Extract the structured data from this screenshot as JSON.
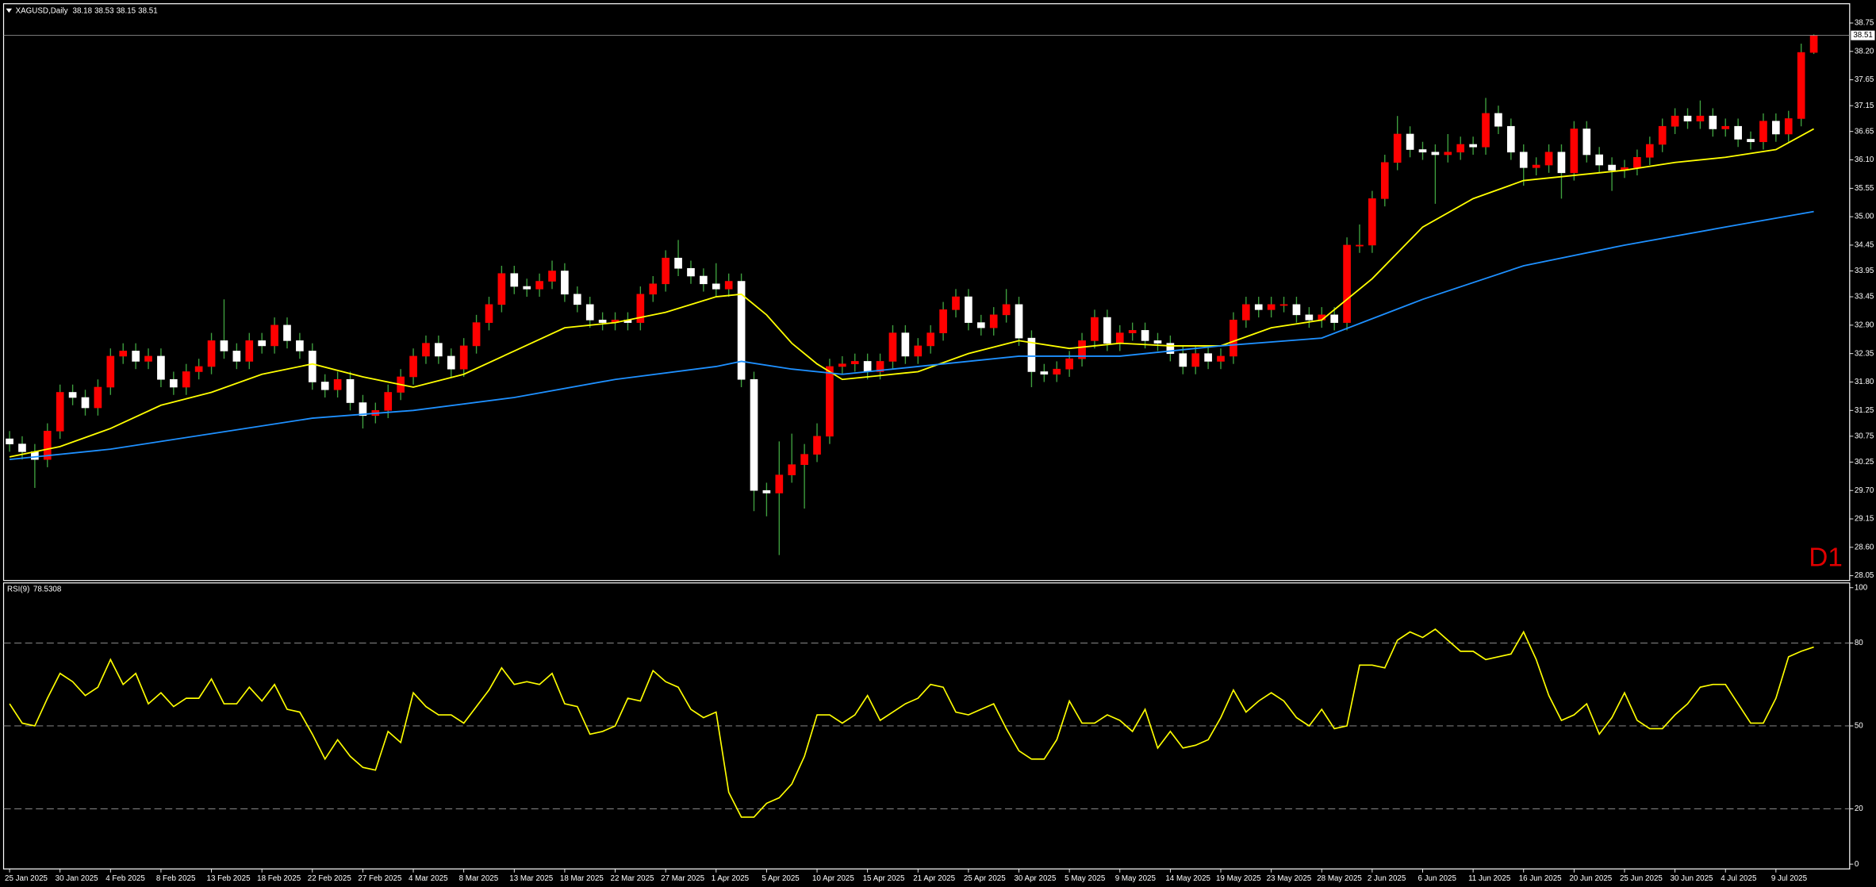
{
  "chart_data": [
    {
      "type": "candlestick",
      "title": "XAGUSD,Daily",
      "annotation": "D1",
      "up_color": "#ff0000",
      "down_color": "#ffffff",
      "wick_color": "#3fa03f",
      "categories": [
        "25 Jan 2025",
        null,
        null,
        null,
        "30 Jan 2025",
        null,
        null,
        null,
        "4 Feb 2025",
        null,
        null,
        null,
        "8 Feb 2025",
        null,
        null,
        null,
        "13 Feb 2025",
        null,
        null,
        null,
        "18 Feb 2025",
        null,
        null,
        null,
        "22 Feb 2025",
        null,
        null,
        null,
        "27 Feb 2025",
        null,
        null,
        null,
        "4 Mar 2025",
        null,
        null,
        null,
        "8 Mar 2025",
        null,
        null,
        null,
        "13 Mar 2025",
        null,
        null,
        null,
        "18 Mar 2025",
        null,
        null,
        null,
        "22 Mar 2025",
        null,
        null,
        null,
        "27 Mar 2025",
        null,
        null,
        null,
        "1 Apr 2025",
        null,
        null,
        null,
        "5 Apr 2025",
        null,
        null,
        null,
        "10 Apr 2025",
        null,
        null,
        null,
        "15 Apr 2025",
        null,
        null,
        null,
        "21 Apr 2025",
        null,
        null,
        null,
        "25 Apr 2025",
        null,
        null,
        null,
        "30 Apr 2025",
        null,
        null,
        null,
        "5 May 2025",
        null,
        null,
        null,
        "9 May 2025",
        null,
        null,
        null,
        "14 May 2025",
        null,
        null,
        null,
        "19 May 2025",
        null,
        null,
        null,
        "23 May 2025",
        null,
        null,
        null,
        "28 May 2025",
        null,
        null,
        null,
        "2 Jun 2025",
        null,
        null,
        null,
        "6 Jun 2025",
        null,
        null,
        null,
        "11 Jun 2025",
        null,
        null,
        null,
        "16 Jun 2025",
        null,
        null,
        null,
        "20 Jun 2025",
        null,
        null,
        null,
        "25 Jun 2025",
        null,
        null,
        null,
        "30 Jun 2025",
        null,
        null,
        null,
        "4 Jul 2025",
        null,
        null,
        null,
        "9 Jul 2025",
        null,
        null,
        null
      ],
      "open": [
        30.7,
        30.6,
        30.45,
        30.3,
        30.85,
        31.6,
        31.5,
        31.3,
        31.7,
        32.3,
        32.4,
        32.2,
        32.3,
        31.85,
        31.7,
        32.0,
        32.1,
        32.6,
        32.4,
        32.2,
        32.6,
        32.5,
        32.9,
        32.6,
        32.4,
        31.8,
        31.65,
        31.85,
        31.4,
        31.15,
        31.25,
        31.6,
        31.9,
        32.3,
        32.55,
        32.3,
        32.05,
        32.5,
        32.95,
        33.3,
        33.9,
        33.65,
        33.6,
        33.75,
        33.95,
        33.5,
        33.3,
        33.0,
        32.95,
        33.0,
        32.95,
        33.5,
        33.7,
        34.2,
        34.0,
        33.85,
        33.7,
        33.6,
        33.75,
        31.85,
        29.7,
        29.65,
        30.0,
        30.2,
        30.4,
        30.75,
        32.1,
        32.15,
        32.2,
        32.0,
        32.2,
        32.75,
        32.3,
        32.5,
        32.75,
        33.2,
        33.45,
        32.95,
        32.85,
        33.1,
        33.3,
        32.65,
        32.0,
        31.95,
        32.05,
        32.25,
        32.6,
        33.05,
        32.55,
        32.75,
        32.8,
        32.6,
        32.55,
        32.35,
        32.1,
        32.35,
        32.2,
        32.3,
        33.0,
        33.3,
        33.2,
        33.3,
        33.3,
        33.1,
        33.0,
        33.1,
        32.95,
        34.45,
        34.45,
        35.35,
        36.05,
        36.6,
        36.3,
        36.25,
        36.2,
        36.25,
        36.4,
        36.35,
        37.0,
        36.75,
        36.25,
        35.95,
        36.0,
        36.25,
        35.85,
        36.7,
        36.2,
        36.0,
        35.9,
        35.95,
        36.15,
        36.4,
        36.75,
        36.95,
        36.85,
        36.95,
        36.7,
        36.75,
        36.5,
        36.45,
        36.85,
        36.6,
        36.9,
        38.18
      ],
      "high": [
        30.85,
        30.75,
        30.6,
        31.0,
        31.75,
        31.75,
        31.65,
        31.85,
        32.45,
        32.55,
        32.55,
        32.45,
        32.45,
        32.0,
        32.15,
        32.25,
        32.75,
        33.4,
        32.55,
        32.75,
        32.75,
        33.05,
        33.05,
        32.75,
        32.55,
        31.95,
        32.0,
        32.0,
        31.55,
        31.4,
        31.75,
        32.05,
        32.45,
        32.7,
        32.7,
        32.45,
        32.65,
        33.1,
        33.45,
        34.05,
        34.05,
        33.8,
        33.9,
        34.15,
        34.1,
        33.65,
        33.45,
        33.15,
        33.15,
        33.15,
        33.65,
        33.85,
        34.35,
        34.55,
        34.15,
        34.0,
        34.1,
        33.9,
        33.9,
        32.0,
        29.85,
        30.65,
        30.8,
        30.6,
        31.0,
        32.25,
        32.3,
        32.35,
        32.35,
        32.35,
        32.9,
        32.9,
        32.65,
        32.9,
        33.35,
        33.6,
        33.6,
        33.1,
        33.25,
        33.6,
        33.45,
        32.8,
        32.15,
        32.2,
        32.4,
        32.75,
        33.2,
        33.2,
        32.9,
        32.95,
        32.95,
        32.75,
        32.7,
        32.5,
        32.5,
        32.5,
        32.45,
        33.15,
        33.45,
        33.45,
        33.45,
        33.45,
        33.45,
        33.25,
        33.25,
        33.25,
        34.6,
        34.85,
        35.5,
        36.2,
        36.95,
        36.75,
        36.45,
        36.4,
        36.6,
        36.55,
        36.55,
        37.3,
        37.15,
        36.9,
        36.4,
        36.15,
        36.4,
        36.4,
        36.85,
        36.85,
        36.35,
        36.15,
        36.1,
        36.3,
        36.55,
        36.9,
        37.1,
        37.1,
        37.25,
        37.1,
        36.9,
        36.9,
        36.65,
        37.0,
        37.0,
        37.05,
        38.35,
        38.53
      ],
      "low": [
        30.45,
        30.3,
        29.75,
        30.15,
        30.7,
        31.35,
        31.15,
        31.15,
        31.55,
        32.15,
        32.05,
        32.05,
        31.7,
        31.55,
        31.55,
        31.85,
        31.95,
        32.25,
        32.05,
        32.05,
        32.35,
        32.35,
        32.45,
        32.25,
        31.65,
        31.5,
        31.5,
        31.25,
        30.9,
        31.0,
        31.1,
        31.45,
        31.75,
        32.15,
        32.15,
        31.9,
        31.9,
        32.35,
        32.8,
        33.15,
        33.5,
        33.45,
        33.45,
        33.6,
        33.35,
        33.15,
        32.85,
        32.8,
        32.8,
        32.8,
        32.8,
        33.35,
        33.55,
        33.85,
        33.7,
        33.55,
        33.45,
        33.45,
        31.7,
        29.3,
        29.2,
        28.45,
        29.85,
        29.35,
        30.25,
        30.6,
        31.95,
        32.0,
        31.85,
        31.85,
        32.05,
        32.15,
        32.15,
        32.35,
        32.6,
        33.05,
        32.8,
        32.7,
        32.7,
        32.95,
        32.5,
        31.7,
        31.8,
        31.8,
        31.9,
        32.1,
        32.45,
        32.4,
        32.4,
        32.6,
        32.45,
        32.4,
        32.2,
        31.95,
        31.95,
        32.05,
        32.05,
        32.15,
        32.85,
        33.05,
        33.05,
        33.15,
        32.95,
        32.85,
        32.85,
        32.8,
        32.8,
        34.3,
        34.3,
        35.2,
        35.9,
        36.15,
        36.1,
        35.25,
        36.05,
        36.1,
        36.2,
        36.2,
        36.6,
        36.1,
        35.6,
        35.8,
        35.85,
        35.35,
        35.7,
        36.05,
        35.85,
        35.5,
        35.75,
        35.8,
        36.0,
        36.25,
        36.6,
        36.7,
        36.7,
        36.55,
        36.55,
        36.35,
        36.3,
        36.3,
        36.45,
        36.45,
        36.75,
        38.15
      ],
      "close": [
        30.6,
        30.45,
        30.3,
        30.85,
        31.6,
        31.5,
        31.3,
        31.7,
        32.3,
        32.4,
        32.2,
        32.3,
        31.85,
        31.7,
        32.0,
        32.1,
        32.6,
        32.4,
        32.2,
        32.6,
        32.5,
        32.9,
        32.6,
        32.4,
        31.8,
        31.65,
        31.85,
        31.4,
        31.15,
        31.25,
        31.6,
        31.9,
        32.3,
        32.55,
        32.3,
        32.05,
        32.5,
        32.95,
        33.3,
        33.9,
        33.65,
        33.6,
        33.75,
        33.95,
        33.5,
        33.3,
        33.0,
        32.95,
        33.0,
        32.95,
        33.5,
        33.7,
        34.2,
        34.0,
        33.85,
        33.7,
        33.6,
        33.75,
        31.85,
        29.7,
        29.65,
        30.0,
        30.2,
        30.4,
        30.75,
        32.1,
        32.15,
        32.2,
        32.0,
        32.2,
        32.75,
        32.3,
        32.5,
        32.75,
        33.2,
        33.45,
        32.95,
        32.85,
        33.1,
        33.3,
        32.65,
        32.0,
        31.95,
        32.05,
        32.25,
        32.6,
        33.05,
        32.55,
        32.75,
        32.8,
        32.6,
        32.55,
        32.35,
        32.1,
        32.35,
        32.2,
        32.3,
        33.0,
        33.3,
        33.2,
        33.3,
        33.3,
        33.1,
        33.0,
        33.1,
        32.95,
        34.45,
        34.45,
        35.35,
        36.05,
        36.6,
        36.3,
        36.25,
        36.2,
        36.25,
        36.4,
        36.35,
        37.0,
        36.75,
        36.25,
        35.95,
        36.0,
        36.25,
        35.85,
        36.7,
        36.2,
        36.0,
        35.9,
        35.95,
        36.15,
        36.4,
        36.75,
        36.95,
        36.85,
        36.95,
        36.7,
        36.75,
        36.5,
        36.45,
        36.85,
        36.6,
        36.9,
        38.18,
        38.51
      ],
      "overlays": [
        {
          "color": "#ffff00",
          "x": [
            0,
            4,
            8,
            12,
            16,
            20,
            24,
            28,
            32,
            36,
            40,
            44,
            48,
            52,
            56,
            58,
            60,
            62,
            64,
            66,
            68,
            72,
            76,
            80,
            84,
            88,
            92,
            96,
            100,
            104,
            108,
            112,
            116,
            120,
            124,
            128,
            132,
            136,
            140,
            143
          ],
          "values": [
            30.35,
            30.55,
            30.9,
            31.35,
            31.6,
            31.95,
            32.15,
            31.9,
            31.7,
            31.95,
            32.4,
            32.85,
            32.95,
            33.15,
            33.45,
            33.5,
            33.1,
            32.55,
            32.15,
            31.85,
            31.9,
            32.0,
            32.35,
            32.6,
            32.45,
            32.55,
            32.5,
            32.5,
            32.85,
            33.0,
            33.8,
            34.8,
            35.35,
            35.7,
            35.8,
            35.9,
            36.05,
            36.15,
            36.3,
            36.7
          ]
        },
        {
          "color": "#1e90ff",
          "x": [
            0,
            8,
            16,
            24,
            32,
            40,
            48,
            56,
            58,
            62,
            66,
            72,
            80,
            88,
            96,
            104,
            112,
            120,
            128,
            136,
            143
          ],
          "values": [
            30.3,
            30.5,
            30.8,
            31.1,
            31.25,
            31.5,
            31.85,
            32.1,
            32.2,
            32.05,
            31.95,
            32.1,
            32.3,
            32.3,
            32.5,
            32.65,
            33.4,
            34.05,
            34.45,
            34.8,
            35.1
          ]
        }
      ],
      "ylim": [
        27.98,
        39.1
      ],
      "yticks": [
        38.75,
        {
          "value": 38.2,
          "label": "38.20"
        },
        37.65,
        37.15,
        36.65,
        {
          "value": 36.1,
          "label": "36.10"
        },
        35.55,
        {
          "value": 35.0,
          "label": "35.00"
        },
        34.45,
        33.95,
        33.45,
        {
          "value": 32.9,
          "label": "32.90"
        },
        32.35,
        {
          "value": 31.8,
          "label": "31.80"
        },
        31.25,
        30.75,
        30.25,
        {
          "value": 29.7,
          "label": "29.70"
        },
        29.15,
        {
          "value": 28.6,
          "label": "28.60"
        },
        28.05
      ]
    },
    {
      "type": "line",
      "title": "RSI(9)",
      "color": "#ffff00",
      "values": [
        58,
        51,
        50,
        60,
        69,
        66,
        61,
        64,
        74,
        65,
        69,
        58,
        62,
        57,
        60,
        60,
        67,
        58,
        58,
        64,
        59,
        65,
        56,
        55,
        47,
        38,
        45,
        39,
        35,
        34,
        48,
        44,
        62,
        57,
        54,
        54,
        51,
        57,
        63,
        71,
        65,
        66,
        65,
        69,
        58,
        57,
        47,
        48,
        50,
        60,
        59,
        70,
        66,
        64,
        56,
        53,
        55,
        26,
        17,
        17,
        22,
        24,
        29,
        39,
        54,
        54,
        51,
        54,
        61,
        52,
        55,
        58,
        60,
        65,
        64,
        55,
        54,
        56,
        58,
        49,
        41,
        38,
        38,
        45,
        59,
        51,
        51,
        54,
        52,
        48,
        56,
        42,
        48,
        42,
        43,
        45,
        53,
        63,
        55,
        59,
        62,
        59,
        53,
        50,
        56,
        49,
        50,
        72,
        72,
        71,
        81,
        84,
        82,
        85,
        81,
        77,
        77,
        74,
        75,
        76,
        84,
        74,
        61,
        52,
        54,
        58,
        47,
        53,
        62,
        52,
        49,
        49,
        54,
        58,
        64,
        65,
        65,
        58,
        51,
        51,
        60,
        75,
        77,
        78.5308
      ],
      "ylim": [
        0,
        100
      ],
      "yticks": [
        100,
        80,
        50,
        20,
        0
      ],
      "grid": "dashed"
    }
  ]
}
